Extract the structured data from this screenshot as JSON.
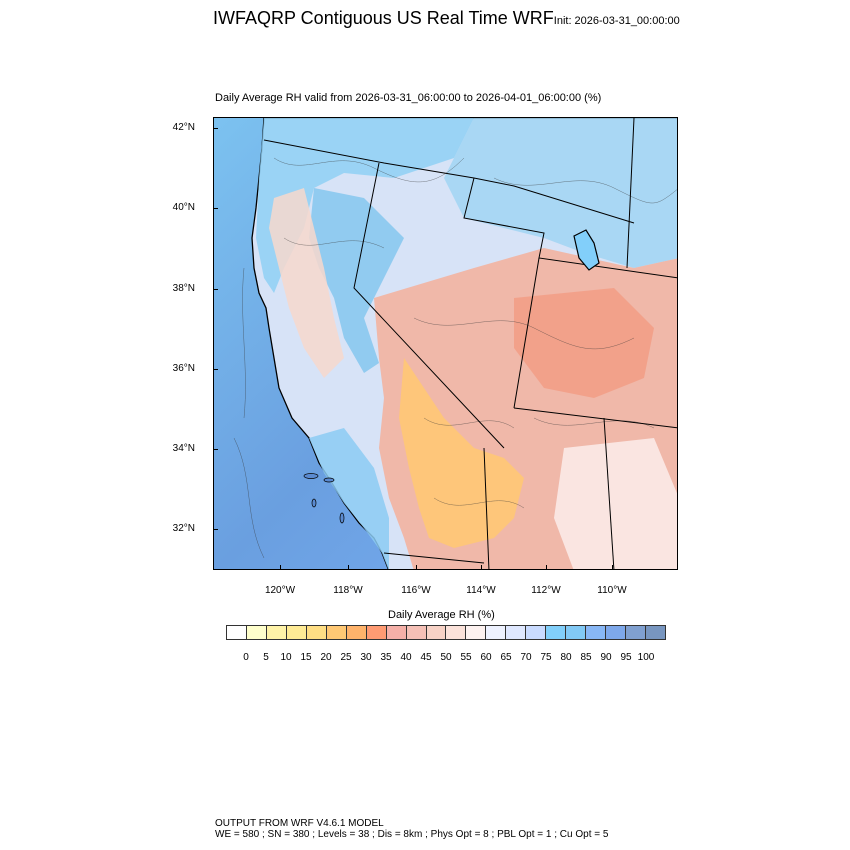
{
  "title": "IWFAQRP Contiguous US Real Time WRF",
  "init_label": "Init: 2026-03-31_00:00:00",
  "subtitle": "Daily Average RH valid from 2026-03-31_06:00:00 to 2026-04-01_06:00:00   (%)",
  "map": {
    "lat_labels": [
      "42°N",
      "40°N",
      "38°N",
      "36°N",
      "34°N",
      "32°N"
    ],
    "lon_labels": [
      "120°W",
      "118°W",
      "116°W",
      "114°W",
      "112°W",
      "110°W"
    ],
    "lat_range": [
      31,
      42.3
    ],
    "lon_range": [
      -122,
      -108.2
    ],
    "ocean_color": "#6fa8dc",
    "land_color": "#c9daf8"
  },
  "colorbar": {
    "title": "Daily Average RH  (%)",
    "labels": [
      "0",
      "5",
      "10",
      "15",
      "20",
      "25",
      "30",
      "35",
      "40",
      "45",
      "50",
      "55",
      "60",
      "65",
      "70",
      "75",
      "80",
      "85",
      "90",
      "95",
      "100"
    ],
    "colors": [
      "#ffffff",
      "#ffffcc",
      "#fff3a8",
      "#ffeb95",
      "#ffde84",
      "#ffc874",
      "#ffb36b",
      "#ff9b73",
      "#f5b0a8",
      "#f5c0b6",
      "#f7d2c6",
      "#fbe2da",
      "#fdf2f0",
      "#eef2ff",
      "#dfe8ff",
      "#c9dbff",
      "#82cffa",
      "#82c9f5",
      "#88b7f5",
      "#7ea8ea",
      "#80a0d0",
      "#7896c0"
    ]
  },
  "footer": {
    "line1": "OUTPUT FROM WRF V4.6.1 MODEL",
    "line2": "WE = 580 ; SN = 380 ; Levels = 38 ; Dis = 8km ; Phys Opt = 8 ; PBL Opt = 1 ; Cu Opt = 5"
  }
}
